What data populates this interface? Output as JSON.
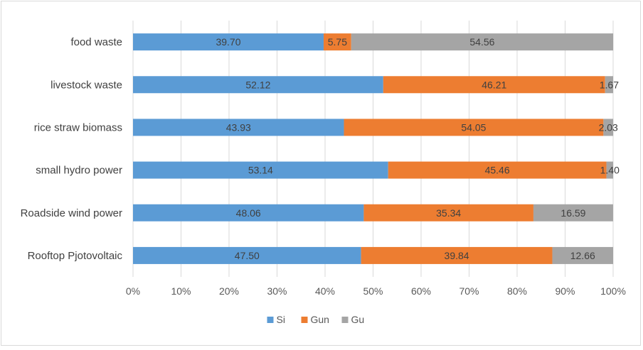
{
  "chart_data": {
    "type": "bar",
    "orientation": "horizontal",
    "stacked": "percent",
    "title": "",
    "xlabel": "",
    "ylabel": "",
    "categories": [
      "food waste",
      "livestock waste",
      "rice straw biomass",
      "small hydro power",
      "Roadside wind power",
      "Rooftop Pjotovoltaic"
    ],
    "series": [
      {
        "name": "Si",
        "color": "#5b9bd5",
        "values": [
          39.7,
          52.12,
          43.93,
          53.14,
          48.06,
          47.5
        ]
      },
      {
        "name": "Gun",
        "color": "#ed7d31",
        "values": [
          5.75,
          46.21,
          54.05,
          45.46,
          35.34,
          39.84
        ]
      },
      {
        "name": "Gu",
        "color": "#a5a5a5",
        "values": [
          54.56,
          1.67,
          2.03,
          1.4,
          16.59,
          12.66
        ]
      }
    ],
    "data_labels": [
      [
        "39.70",
        "52.12",
        "43.93",
        "53.14",
        "48.06",
        "47.50"
      ],
      [
        "5.75",
        "46.21",
        "54.05",
        "45.46",
        "35.34",
        "39.84"
      ],
      [
        "54.56",
        "1.67",
        "2.03",
        "1.40",
        "16.59",
        "12.66"
      ]
    ],
    "xticks": [
      "0%",
      "10%",
      "20%",
      "30%",
      "40%",
      "50%",
      "60%",
      "70%",
      "80%",
      "90%",
      "100%"
    ],
    "xlim": [
      0,
      100
    ],
    "grid": true,
    "legend": "bottom"
  }
}
